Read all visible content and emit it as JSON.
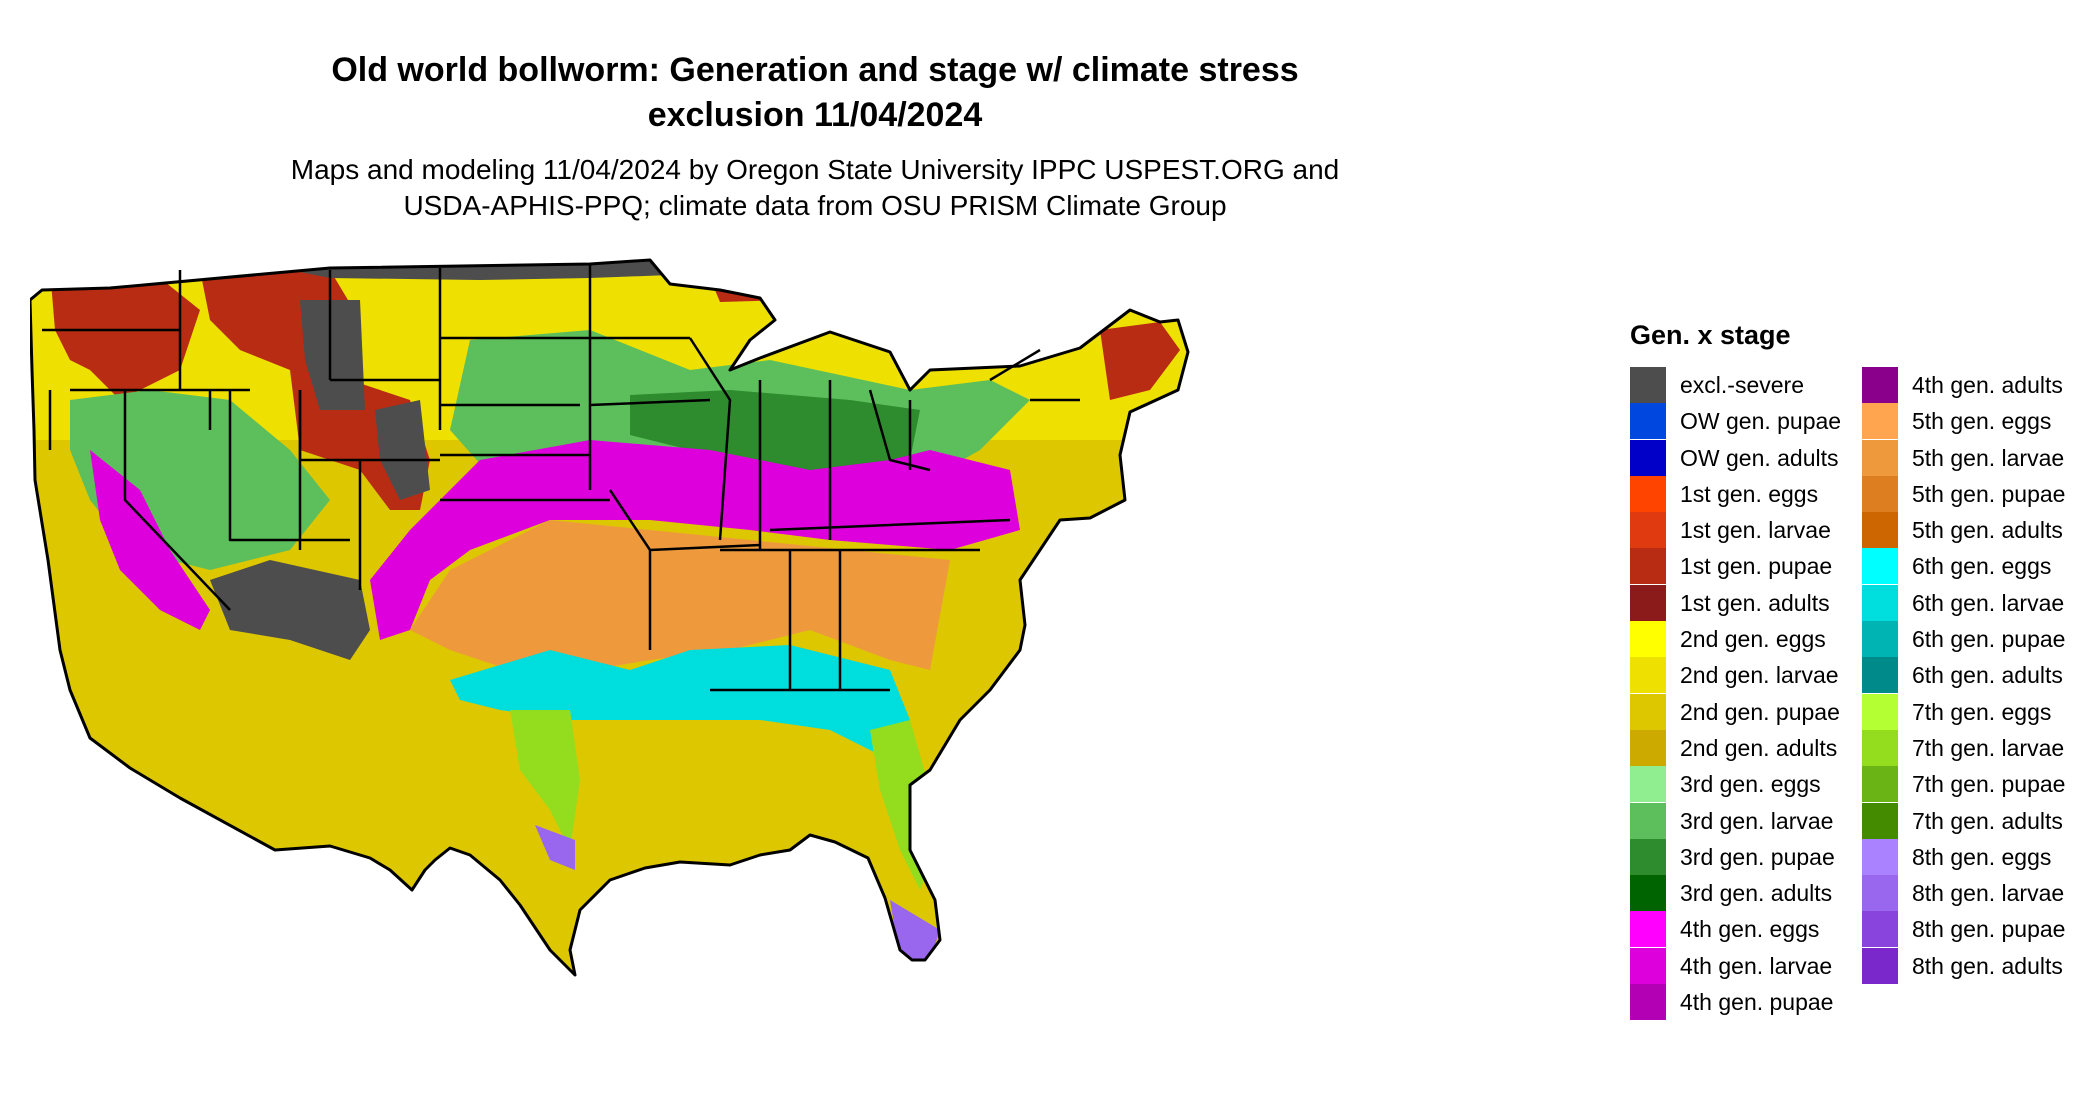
{
  "title_line1": "Old world bollworm: Generation and stage w/ climate stress",
  "title_line2": "exclusion 11/04/2024",
  "subtitle_line1": "Maps and modeling 11/04/2024 by Oregon State University IPPC USPEST.ORG and",
  "subtitle_line2": "USDA-APHIS-PPQ; climate data from OSU PRISM Climate Group",
  "legend": {
    "title": "Gen. x stage",
    "items": [
      {
        "label": "excl.-severe",
        "color": "#4d4d4d"
      },
      {
        "label": "OW gen. pupae",
        "color": "#0047e0"
      },
      {
        "label": "OW gen. adults",
        "color": "#0000c8"
      },
      {
        "label": "1st gen. eggs",
        "color": "#ff4400"
      },
      {
        "label": "1st gen. larvae",
        "color": "#e03a10"
      },
      {
        "label": "1st gen. pupae",
        "color": "#b82c14"
      },
      {
        "label": "1st gen. adults",
        "color": "#8b1a1a"
      },
      {
        "label": "2nd gen. eggs",
        "color": "#ffff00"
      },
      {
        "label": "2nd gen. larvae",
        "color": "#eee000"
      },
      {
        "label": "2nd gen. pupae",
        "color": "#ddc700"
      },
      {
        "label": "2nd gen. adults",
        "color": "#cdaa00"
      },
      {
        "label": "3rd gen. eggs",
        "color": "#90ee90"
      },
      {
        "label": "3rd gen. larvae",
        "color": "#5cbf5c"
      },
      {
        "label": "3rd gen. pupae",
        "color": "#2e8b2e"
      },
      {
        "label": "3rd gen. adults",
        "color": "#006400"
      },
      {
        "label": "4th gen. eggs",
        "color": "#ff00ff"
      },
      {
        "label": "4th gen. larvae",
        "color": "#dd00dd"
      },
      {
        "label": "4th gen. pupae",
        "color": "#b400b4"
      },
      {
        "label": "4th gen. adults",
        "color": "#8b008b"
      },
      {
        "label": "5th gen. eggs",
        "color": "#ffa54f"
      },
      {
        "label": "5th gen. larvae",
        "color": "#ee9a3c"
      },
      {
        "label": "5th gen. pupae",
        "color": "#dd7f20"
      },
      {
        "label": "5th gen. adults",
        "color": "#cd6600"
      },
      {
        "label": "6th gen. eggs",
        "color": "#00ffff"
      },
      {
        "label": "6th gen. larvae",
        "color": "#00dddd"
      },
      {
        "label": "6th gen. pupae",
        "color": "#00b4b4"
      },
      {
        "label": "6th gen. adults",
        "color": "#008b8b"
      },
      {
        "label": "7th gen. eggs",
        "color": "#b3ff33"
      },
      {
        "label": "7th gen. larvae",
        "color": "#94dd1e"
      },
      {
        "label": "7th gen. pupae",
        "color": "#6ab415"
      },
      {
        "label": "7th gen. adults",
        "color": "#458b00"
      },
      {
        "label": "8th gen. eggs",
        "color": "#aa82ff"
      },
      {
        "label": "8th gen. larvae",
        "color": "#9966ee"
      },
      {
        "label": "8th gen. pupae",
        "color": "#8844dd"
      },
      {
        "label": "8th gen. adults",
        "color": "#7a28cc"
      }
    ]
  }
}
